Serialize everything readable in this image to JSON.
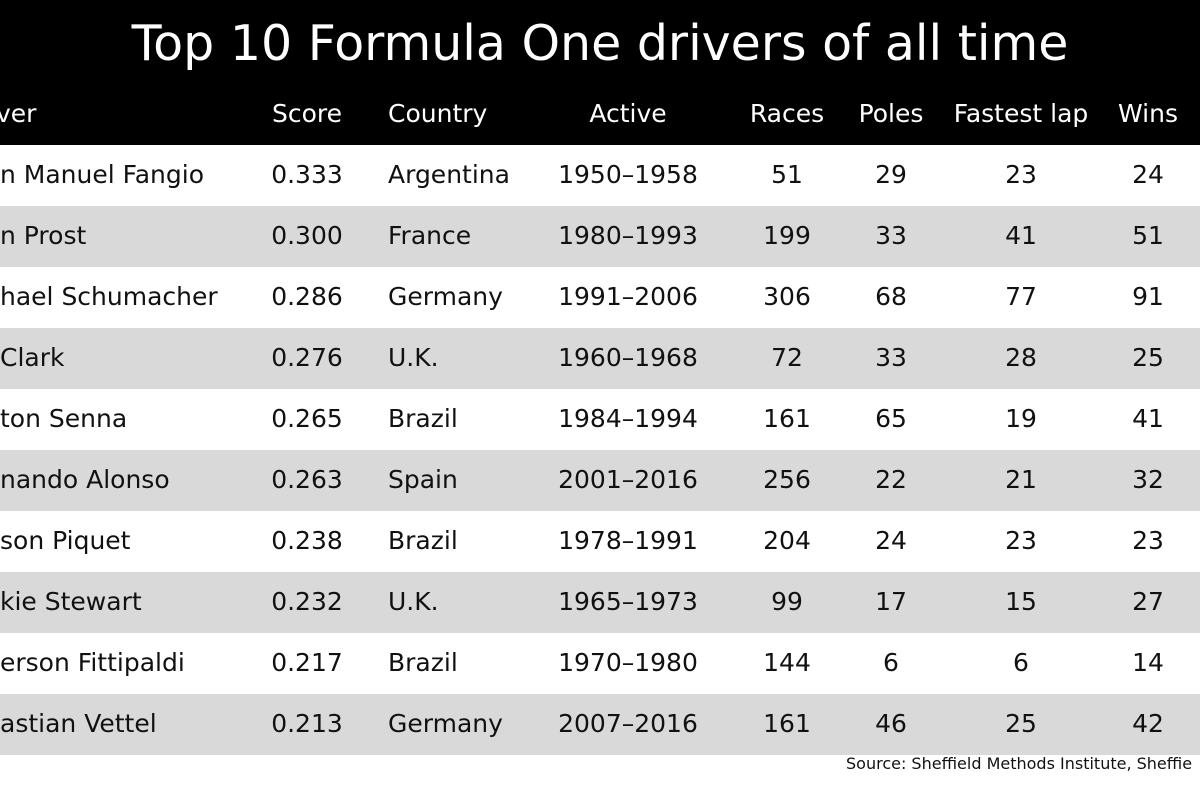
{
  "colors": {
    "header_background": "#000000",
    "header_text": "#ffffff",
    "row_shaded": "#d9d9d9",
    "row_plain": "#ffffff",
    "body_text": "#111111"
  },
  "chart_data": {
    "type": "table",
    "title": "Top 10 Formula One drivers of all time",
    "columns": [
      "ver",
      "Score",
      "Country",
      "Active",
      "Races",
      "Poles",
      "Fastest lap",
      "Wins"
    ],
    "rows": [
      {
        "driver": "n Manuel Fangio",
        "score": "0.333",
        "country": "Argentina",
        "active": "1950–1958",
        "races": "51",
        "poles": "29",
        "fastest_lap": "23",
        "wins": "24"
      },
      {
        "driver": "n Prost",
        "score": "0.300",
        "country": "France",
        "active": "1980–1993",
        "races": "199",
        "poles": "33",
        "fastest_lap": "41",
        "wins": "51"
      },
      {
        "driver": "hael Schumacher",
        "score": "0.286",
        "country": "Germany",
        "active": "1991–2006",
        "races": "306",
        "poles": "68",
        "fastest_lap": "77",
        "wins": "91"
      },
      {
        "driver": "Clark",
        "score": "0.276",
        "country": "U.K.",
        "active": "1960–1968",
        "races": "72",
        "poles": "33",
        "fastest_lap": "28",
        "wins": "25"
      },
      {
        "driver": "ton Senna",
        "score": "0.265",
        "country": "Brazil",
        "active": "1984–1994",
        "races": "161",
        "poles": "65",
        "fastest_lap": "19",
        "wins": "41"
      },
      {
        "driver": "nando Alonso",
        "score": "0.263",
        "country": "Spain",
        "active": "2001–2016",
        "races": "256",
        "poles": "22",
        "fastest_lap": "21",
        "wins": "32"
      },
      {
        "driver": "son Piquet",
        "score": "0.238",
        "country": "Brazil",
        "active": "1978–1991",
        "races": "204",
        "poles": "24",
        "fastest_lap": "23",
        "wins": "23"
      },
      {
        "driver": "kie Stewart",
        "score": "0.232",
        "country": "U.K.",
        "active": "1965–1973",
        "races": "99",
        "poles": "17",
        "fastest_lap": "15",
        "wins": "27"
      },
      {
        "driver": "erson Fittipaldi",
        "score": "0.217",
        "country": "Brazil",
        "active": "1970–1980",
        "races": "144",
        "poles": "6",
        "fastest_lap": "6",
        "wins": "14"
      },
      {
        "driver": "astian Vettel",
        "score": "0.213",
        "country": "Germany",
        "active": "2007–2016",
        "races": "161",
        "poles": "46",
        "fastest_lap": "25",
        "wins": "42"
      }
    ],
    "source": "Source: Sheffield Methods Institute, Sheffie"
  }
}
